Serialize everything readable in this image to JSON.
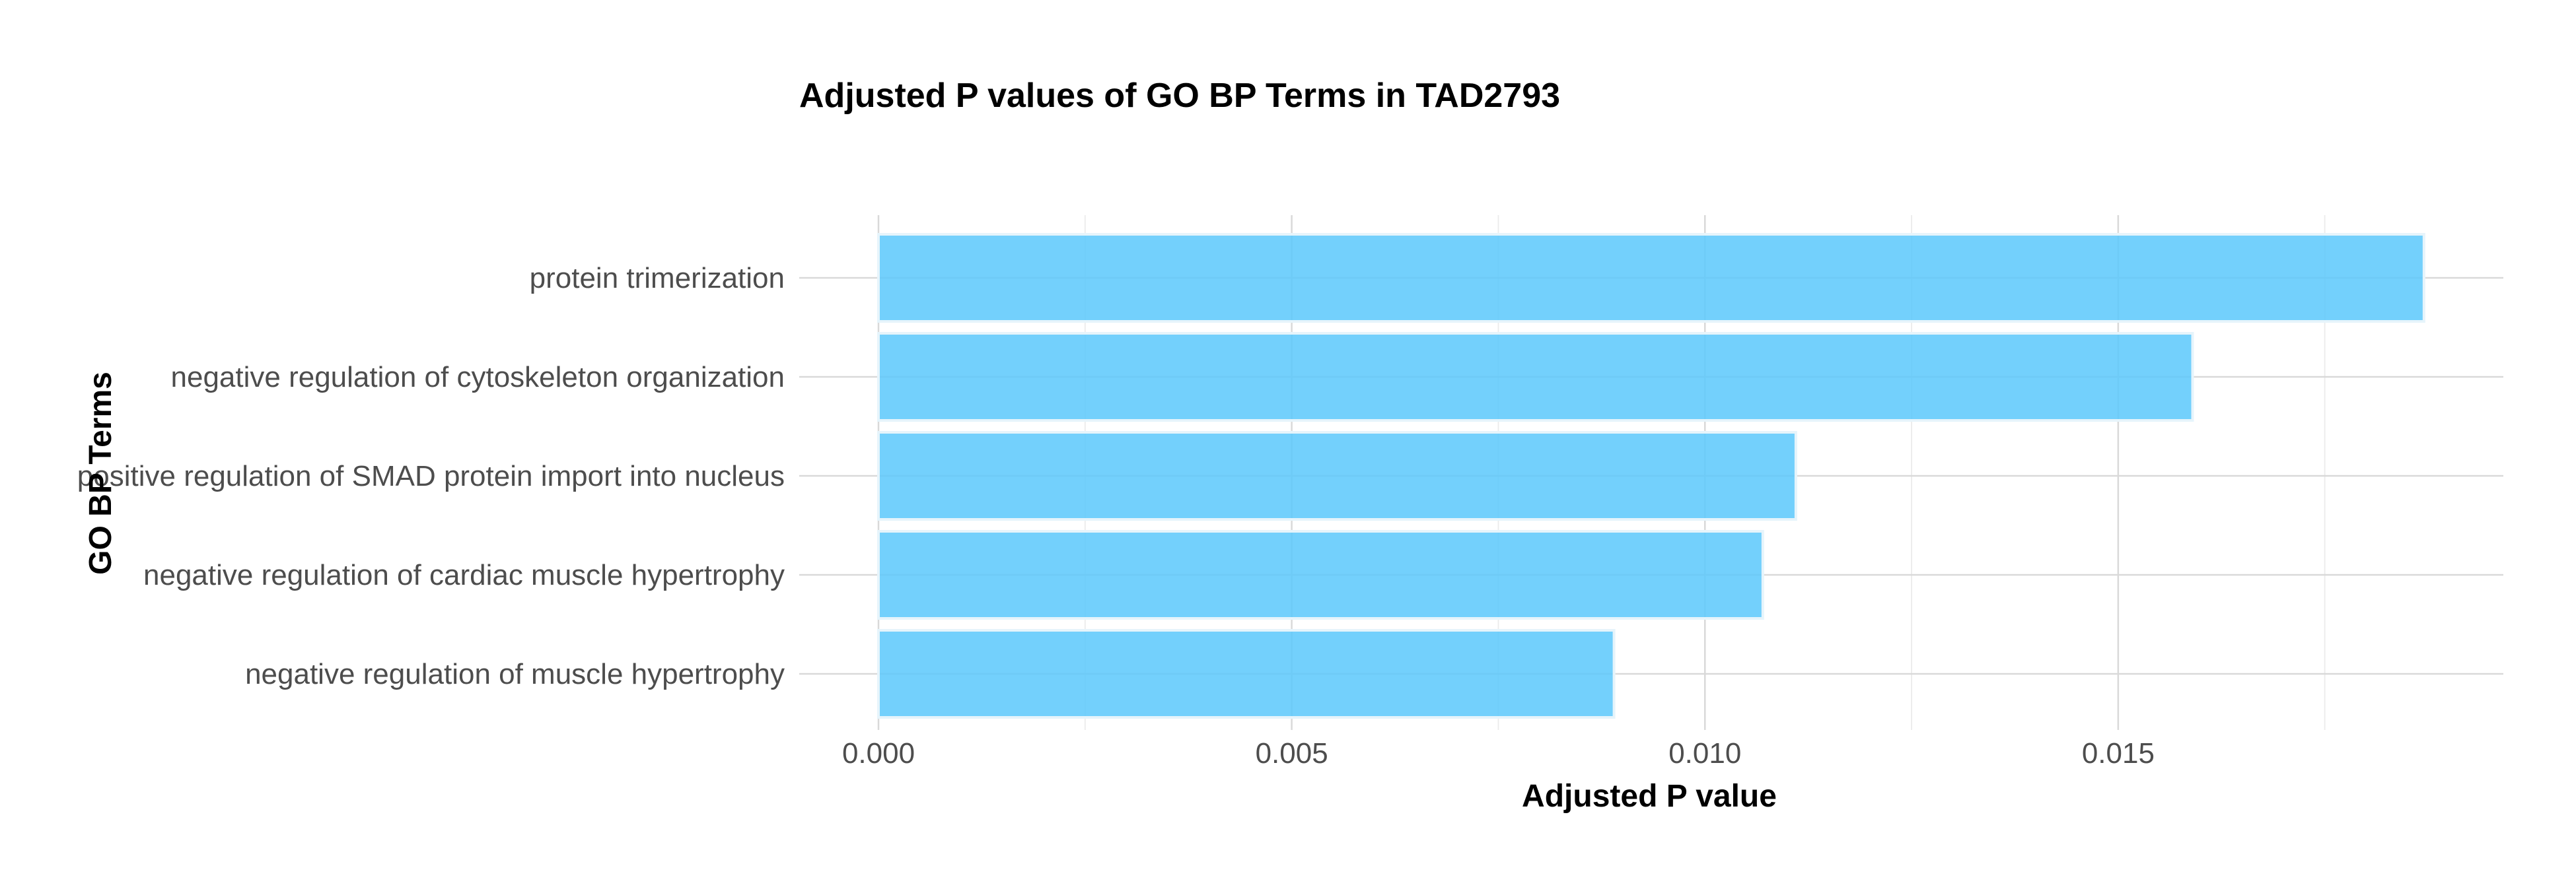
{
  "chart_data": {
    "type": "bar",
    "orientation": "horizontal",
    "title": "Adjusted P values of GO BP Terms in TAD2793",
    "xlabel": "Adjusted P value",
    "ylabel": "GO BP Terms",
    "categories": [
      "protein trimerization",
      "negative regulation of cytoskeleton organization",
      "positive regulation of SMAD protein import into nucleus",
      "negative regulation of cardiac muscle hypertrophy",
      "negative regulation of muscle hypertrophy"
    ],
    "values": [
      0.0187,
      0.0159,
      0.0111,
      0.0107,
      0.0089
    ],
    "xlim": [
      0,
      0.0196
    ],
    "x_ticks": [
      0.0,
      0.005,
      0.01,
      0.015
    ],
    "x_tick_labels": [
      "0.000",
      "0.005",
      "0.010",
      "0.015"
    ],
    "grid": true,
    "bar_color": "#5bc8fb"
  }
}
